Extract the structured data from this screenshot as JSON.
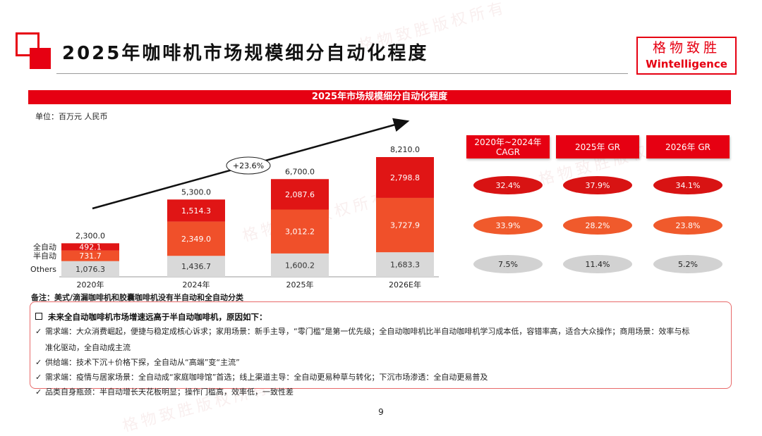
{
  "header": {
    "title": "2025年咖啡机市场规模细分自动化程度",
    "logo_cn": "格物致胜",
    "logo_en": "Wintelligence"
  },
  "banner_title": "2025年市场规模细分自动化程度",
  "unit_label": "单位：百万元 人民币",
  "watermark": "格物致胜版权所有",
  "chart_data": {
    "type": "bar",
    "stacked": true,
    "categories": [
      "2020年",
      "2024年",
      "2025年",
      "2026E年"
    ],
    "series": [
      {
        "name": "Others",
        "values": [
          1076.3,
          1436.7,
          1600.2,
          1683.3
        ],
        "labels": [
          "1,076.3",
          "1,436.7",
          "1,600.2",
          "1,683.3"
        ],
        "color": "#d9d9d9"
      },
      {
        "name": "半自动",
        "values": [
          731.7,
          2349.0,
          3012.2,
          3727.9
        ],
        "labels": [
          "731.7",
          "2,349.0",
          "3,012.2",
          "3,727.9"
        ],
        "color": "#f0502a"
      },
      {
        "name": "全自动",
        "values": [
          492.1,
          1514.3,
          2087.6,
          2798.8
        ],
        "labels": [
          "492.1",
          "1,514.3",
          "2,087.6",
          "2,798.8"
        ],
        "color": "#e01515"
      }
    ],
    "totals": [
      2300.0,
      5300.0,
      6700.0,
      8210.0
    ],
    "total_labels": [
      "2,300.0",
      "5,300.0",
      "6,700.0",
      "8,210.0"
    ],
    "growth_annotation": "+23.6%",
    "ylim": [
      0,
      8210
    ],
    "legend_position": "left"
  },
  "growth_table": {
    "headers": [
      "2020年~2024年\nCAGR",
      "2025年 GR",
      "2026年 GR"
    ],
    "rows": [
      {
        "name": "全自动",
        "values": [
          "32.4%",
          "37.9%",
          "34.1%"
        ]
      },
      {
        "name": "半自动",
        "values": [
          "33.9%",
          "28.2%",
          "23.8%"
        ]
      },
      {
        "name": "Others",
        "values": [
          "7.5%",
          "11.4%",
          "5.2%"
        ]
      }
    ],
    "colors": {
      "full": "#d81313",
      "semi": "#f05a2c",
      "others": "#d2d2d2"
    }
  },
  "note": "备注：美式/滴漏咖啡机和胶囊咖啡机没有半自动和全自动分类",
  "reasons": {
    "title": "未来全自动咖啡机市场增速远高于半自动咖啡机，原因如下：",
    "items": [
      "需求端：大众消费崛起，便捷与稳定成核心诉求；家用场景：新手主导，“零门槛”是第一优先级；全自动咖啡机比半自动咖啡机学习成本低，容错率高，适合大众操作；商用场景：效率与标",
      "准化驱动，全自动成主流",
      "供给端：技术下沉＋价格下探，全自动从“高端”变“主流”",
      "需求端：疫情与居家场景：全自动成“家庭咖啡馆”首选；线上渠道主导：全自动更易种草与转化；下沉市场渗透：全自动更易普及",
      "品类自身瓶颈：半自动增长天花板明显；操作门槛高，效率低，一致性差"
    ],
    "check": "✓"
  },
  "page_number": "9"
}
